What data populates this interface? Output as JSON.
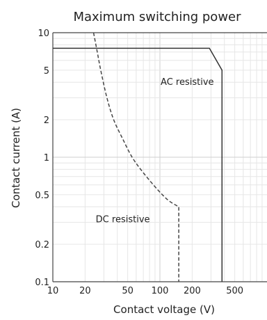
{
  "chart_data": {
    "type": "line",
    "title": "Maximum switching power",
    "xlabel": "Contact voltage (V)",
    "ylabel": "Contact current (A)",
    "x_scale": "log",
    "y_scale": "log",
    "xlim": [
      10,
      1000
    ],
    "ylim": [
      0.1,
      10
    ],
    "x_ticks": [
      10,
      20,
      50,
      100,
      200,
      500
    ],
    "x_tick_labels": [
      "10",
      "20",
      "50",
      "100",
      "200",
      "500"
    ],
    "y_ticks": [
      0.1,
      0.2,
      0.5,
      1,
      2,
      5,
      10
    ],
    "y_tick_labels": [
      "0.1",
      "0.2",
      "0.5",
      "1",
      "2",
      "5",
      "10"
    ],
    "grid": true,
    "series": [
      {
        "name": "AC resistive",
        "style": "solid",
        "color": "#333333",
        "points": [
          [
            10,
            7.5
          ],
          [
            290,
            7.5
          ],
          [
            380,
            5.0
          ],
          [
            380,
            0.1
          ]
        ]
      },
      {
        "name": "DC resistive",
        "style": "dashed",
        "color": "#444444",
        "points": [
          [
            24,
            10
          ],
          [
            26,
            7
          ],
          [
            28,
            5
          ],
          [
            32,
            3
          ],
          [
            37,
            2
          ],
          [
            45,
            1.4
          ],
          [
            55,
            1.0
          ],
          [
            70,
            0.75
          ],
          [
            95,
            0.55
          ],
          [
            120,
            0.45
          ],
          [
            150,
            0.4
          ],
          [
            150,
            0.1
          ]
        ]
      }
    ],
    "annotations": [
      {
        "text": "AC resistive",
        "x": 180,
        "y": 3.8
      },
      {
        "text": "DC resistive",
        "x": 45,
        "y": 0.3
      }
    ]
  }
}
